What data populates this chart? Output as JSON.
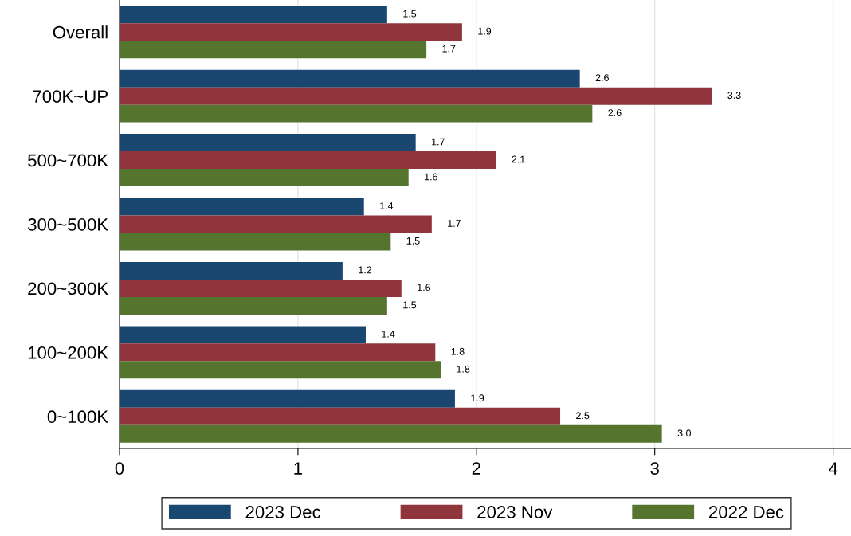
{
  "chart_data": {
    "type": "bar",
    "orientation": "horizontal",
    "categories": [
      "Overall",
      "700K~UP",
      "500~700K",
      "300~500K",
      "200~300K",
      "100~200K",
      "0~100K"
    ],
    "series": [
      {
        "name": "2023 Dec",
        "color": "#1a476f",
        "values": [
          1.5,
          2.58,
          1.66,
          1.37,
          1.25,
          1.38,
          1.88
        ],
        "value_labels": [
          "1.5",
          "2.6",
          "1.7",
          "1.4",
          "1.2",
          "1.4",
          "1.9"
        ]
      },
      {
        "name": "2023 Nov",
        "color": "#90353b",
        "values": [
          1.92,
          3.32,
          2.11,
          1.75,
          1.58,
          1.77,
          2.47
        ],
        "value_labels": [
          "1.9",
          "3.3",
          "2.1",
          "1.7",
          "1.6",
          "1.8",
          "2.5"
        ]
      },
      {
        "name": "2022 Dec",
        "color": "#55752f",
        "values": [
          1.72,
          2.65,
          1.62,
          1.52,
          1.5,
          1.8,
          3.04
        ],
        "value_labels": [
          "1.7",
          "2.6",
          "1.6",
          "1.5",
          "1.5",
          "1.8",
          "3.0"
        ]
      }
    ],
    "xlim": [
      0,
      4.1
    ],
    "xticks": [
      0,
      1,
      2,
      3,
      4
    ],
    "grid": "x",
    "legend": "bottom"
  }
}
